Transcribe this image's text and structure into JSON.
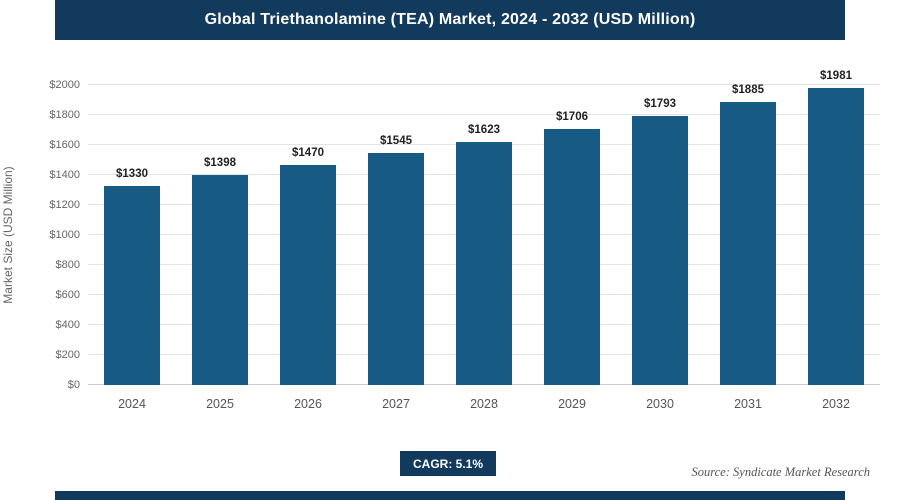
{
  "header": {
    "title": "Global Triethanolamine (TEA) Market, 2024 - 2032 (USD Million)"
  },
  "chart_data": {
    "type": "bar",
    "title": "Global Triethanolamine (TEA) Market, 2024 - 2032 (USD Million)",
    "categories": [
      "2024",
      "2025",
      "2026",
      "2027",
      "2028",
      "2029",
      "2030",
      "2031",
      "2032"
    ],
    "values": [
      1330,
      1398,
      1470,
      1545,
      1623,
      1706,
      1793,
      1885,
      1981
    ],
    "value_labels": [
      "$1330",
      "$1398",
      "$1470",
      "$1545",
      "$1623",
      "$1706",
      "$1793",
      "$1885",
      "$1981"
    ],
    "xlabel": "",
    "ylabel": "Market Size (USD Million)",
    "ylim": [
      0,
      2000
    ],
    "y_ticks": [
      0,
      200,
      400,
      600,
      800,
      1000,
      1200,
      1400,
      1600,
      1800,
      2000
    ],
    "y_tick_labels": [
      "$0",
      "$200",
      "$400",
      "$600",
      "$800",
      "$1000",
      "$1200",
      "$1400",
      "$1600",
      "$1800",
      "$2000"
    ],
    "grid": true,
    "legend": false
  },
  "footer": {
    "cagr_label": "CAGR: 5.1%",
    "source": "Source: Syndicate Market Research"
  },
  "colors": {
    "header_bg": "#113a5d",
    "bar": "#175a84",
    "cagr_bg": "#113a5d",
    "bottom_bar_bg": "#113a5d"
  }
}
